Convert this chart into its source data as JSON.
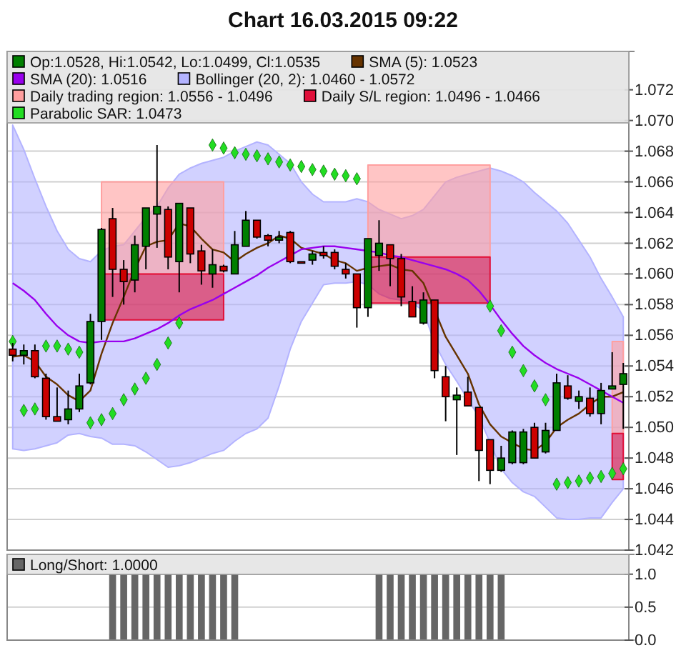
{
  "chart_data": [
    {
      "type": "candlestick",
      "title": "Chart 16.03.2015 09:22",
      "legend": "top left",
      "grid": "y",
      "tick_labels": "y",
      "categories": [
        null,
        null,
        null,
        null,
        null,
        null,
        null,
        null,
        null,
        null,
        null,
        null,
        null,
        null,
        null,
        null,
        null,
        null,
        null,
        null,
        null,
        null,
        null,
        null,
        null,
        null,
        null,
        null,
        null,
        null,
        null,
        null,
        null,
        null,
        null,
        null,
        null,
        null,
        null,
        null,
        null,
        null,
        null,
        null,
        null,
        null,
        null,
        null,
        null,
        null,
        null,
        null,
        null,
        null,
        null,
        null
      ],
      "ylim": [
        1.042,
        1.0745
      ],
      "yticks": [
        {
          "value": 1.042,
          "label": "1.042"
        },
        {
          "value": 1.044,
          "label": "1.044"
        },
        {
          "value": 1.046,
          "label": "1.046"
        },
        {
          "value": 1.048,
          "label": "1.048"
        },
        {
          "value": 1.05,
          "label": "1.050"
        },
        {
          "value": 1.052,
          "label": "1.052"
        },
        {
          "value": 1.054,
          "label": "1.054"
        },
        {
          "value": 1.056,
          "label": "1.056"
        },
        {
          "value": 1.058,
          "label": "1.058"
        },
        {
          "value": 1.06,
          "label": "1.060"
        },
        {
          "value": 1.062,
          "label": "1.062"
        },
        {
          "value": 1.064,
          "label": "1.064"
        },
        {
          "value": 1.066,
          "label": "1.066"
        },
        {
          "value": 1.068,
          "label": "1.068"
        },
        {
          "value": 1.07,
          "label": "1.070"
        },
        {
          "value": 1.072,
          "label": "1.072"
        }
      ],
      "series": [
        {
          "type": "candlestick",
          "name": "Op:1.0528, Hi:1.0542, Lo:1.0499, Cl:1.0535",
          "color": "#007f00",
          "colors": [
            "#cc0000",
            "#007f00",
            "#cc0000",
            "#cc0000",
            "#cc0000",
            "#007f00",
            "#007f00",
            "#007f00",
            "#007f00",
            "#cc0000",
            "#cc0000",
            "#007f00",
            "#007f00",
            "#007f00",
            "#cc0000",
            "#007f00",
            "#cc0000",
            "#cc0000",
            "#007f00",
            "#cc0000",
            "#007f00",
            "#007f00",
            "#cc0000",
            "#cc0000",
            "#007f00",
            "#cc0000",
            "#cc0000",
            "#007f00",
            "#cc0000",
            "#cc0000",
            "#cc0000",
            "#cc0000",
            "#007f00",
            "#007f00",
            "#cc0000",
            "#cc0000",
            "#cc0000",
            "#007f00",
            "#cc0000",
            "#cc0000",
            "#007f00",
            "#cc0000",
            "#cc0000",
            "#cc0000",
            "#007f00",
            "#007f00",
            "#007f00",
            "#cc0000",
            "#007f00",
            "#007f00",
            "#cc0000",
            "#007f00",
            "#cc0000",
            "#007f00",
            "#007f00",
            "#007f00"
          ],
          "ohlc": [
            [
              1.0551,
              1.0555,
              1.0543,
              1.0547
            ],
            [
              1.0547,
              1.0554,
              1.0541,
              1.055
            ],
            [
              1.055,
              1.0554,
              1.0532,
              1.0533
            ],
            [
              1.0532,
              1.0535,
              1.0505,
              1.0507
            ],
            [
              1.0507,
              1.0526,
              1.0504,
              1.0504
            ],
            [
              1.0505,
              1.0524,
              1.0502,
              1.0512
            ],
            [
              1.0512,
              1.0535,
              1.051,
              1.0527
            ],
            [
              1.0529,
              1.0574,
              1.0528,
              1.0569
            ],
            [
              1.0569,
              1.063,
              1.0557,
              1.0629
            ],
            [
              1.0636,
              1.0643,
              1.0585,
              1.0603
            ],
            [
              1.0603,
              1.0609,
              1.058,
              1.0595
            ],
            [
              1.0596,
              1.0625,
              1.0588,
              1.0619
            ],
            [
              1.0618,
              1.0643,
              1.0603,
              1.0643
            ],
            [
              1.0639,
              1.0684,
              1.0617,
              1.0644
            ],
            [
              1.0642,
              1.0644,
              1.0603,
              1.0611
            ],
            [
              1.0608,
              1.0646,
              1.0588,
              1.0646
            ],
            [
              1.0643,
              1.0643,
              1.0607,
              1.0613
            ],
            [
              1.0615,
              1.0619,
              1.0593,
              1.0602
            ],
            [
              1.06,
              1.0616,
              1.0591,
              1.0606
            ],
            [
              1.0605,
              1.0606,
              1.0601,
              1.0602
            ],
            [
              1.06,
              1.0628,
              1.06,
              1.0619
            ],
            [
              1.0618,
              1.0641,
              1.0618,
              1.0635
            ],
            [
              1.0635,
              1.0635,
              1.0623,
              1.0624
            ],
            [
              1.0625,
              1.0626,
              1.0618,
              1.0622
            ],
            [
              1.0622,
              1.0628,
              1.062,
              1.0624
            ],
            [
              1.0627,
              1.0628,
              1.0607,
              1.0608
            ],
            [
              1.0608,
              1.0608,
              1.0607,
              1.0607
            ],
            [
              1.0609,
              1.0615,
              1.0606,
              1.0613
            ],
            [
              1.0614,
              1.0618,
              1.061,
              1.0612
            ],
            [
              1.0614,
              1.0616,
              1.0603,
              1.0605
            ],
            [
              1.0603,
              1.0607,
              1.0597,
              1.06
            ],
            [
              1.06,
              1.06,
              1.0565,
              1.0578
            ],
            [
              1.0578,
              1.0623,
              1.0572,
              1.0623
            ],
            [
              1.0612,
              1.0635,
              1.0602,
              1.062
            ],
            [
              1.0619,
              1.0619,
              1.0592,
              1.061
            ],
            [
              1.061,
              1.0613,
              1.0579,
              1.0585
            ],
            [
              1.0582,
              1.0592,
              1.0572,
              1.0572
            ],
            [
              1.0568,
              1.0588,
              1.0567,
              1.0583
            ],
            [
              1.0583,
              1.0583,
              1.0532,
              1.0537
            ],
            [
              1.0533,
              1.054,
              1.0504,
              1.052
            ],
            [
              1.0518,
              1.0526,
              1.0482,
              1.0521
            ],
            [
              1.0523,
              1.0533,
              1.0514,
              1.0514
            ],
            [
              1.0513,
              1.0513,
              1.0465,
              1.0485
            ],
            [
              1.0492,
              1.0492,
              1.0463,
              1.0472
            ],
            [
              1.0472,
              1.0488,
              1.0471,
              1.048
            ],
            [
              1.0477,
              1.0498,
              1.0476,
              1.0497
            ],
            [
              1.0477,
              1.0499,
              1.0476,
              1.0497
            ],
            [
              1.05,
              1.0503,
              1.048,
              1.048
            ],
            [
              1.0484,
              1.0503,
              1.0483,
              1.0498
            ],
            [
              1.0498,
              1.0535,
              1.0498,
              1.0529
            ],
            [
              1.0527,
              1.0534,
              1.0518,
              1.0519
            ],
            [
              1.0517,
              1.0524,
              1.0512,
              1.052
            ],
            [
              1.0519,
              1.0526,
              1.0507,
              1.0509
            ],
            [
              1.0509,
              1.0529,
              1.0502,
              1.0524
            ],
            [
              1.0525,
              1.0549,
              1.0525,
              1.0527
            ],
            [
              1.0528,
              1.0542,
              1.0499,
              1.0535
            ]
          ]
        },
        {
          "type": "line",
          "name": "SMA (5): 1.0523",
          "color": "#663300",
          "values": [
            1.0546,
            1.0547,
            1.0543,
            1.0533,
            1.0528,
            1.0521,
            1.0517,
            1.0524,
            1.0548,
            1.0568,
            1.0585,
            1.0603,
            1.0618,
            1.0621,
            1.0622,
            1.0633,
            1.0631,
            1.0623,
            1.0616,
            1.0614,
            1.0608,
            1.0613,
            1.0617,
            1.062,
            1.0625,
            1.0623,
            1.0617,
            1.0615,
            1.0613,
            1.0609,
            1.0607,
            1.0602,
            1.0604,
            1.0605,
            1.0606,
            1.0603,
            1.0602,
            1.0594,
            null,
            1.0559,
            1.0547,
            1.0535,
            1.0515,
            1.0502,
            1.0494,
            1.049,
            1.0486,
            1.0485,
            1.049,
            1.05,
            1.0505,
            1.0509,
            1.0515,
            1.052,
            1.052,
            1.0523
          ]
        },
        {
          "type": "line",
          "name": "SMA (20): 1.0516",
          "color": "#9900ee",
          "values": [
            1.0594,
            1.0589,
            1.0583,
            1.0574,
            1.0566,
            1.056,
            1.0556,
            1.0555,
            1.0556,
            1.0556,
            1.0556,
            1.0558,
            1.0561,
            1.0564,
            1.0568,
            1.0573,
            1.0577,
            1.058,
            1.0583,
            1.0587,
            1.0591,
            1.0595,
            1.0599,
            1.0604,
            1.0608,
            1.0612,
            1.0616,
            1.0617,
            1.0618,
            1.0618,
            1.0617,
            1.0616,
            1.0615,
            1.0614,
            1.0612,
            1.0611,
            1.0609,
            1.0607,
            1.0605,
            1.0603,
            1.06,
            1.0596,
            1.0589,
            1.058,
            1.057,
            1.0561,
            1.0553,
            1.0547,
            1.0542,
            1.0538,
            1.0535,
            1.0532,
            1.0528,
            1.0524,
            1.052,
            1.0516
          ]
        },
        {
          "type": "line",
          "name": "Bollinger (20, 2): 1.0460 - 1.0572",
          "color": "#b3b3ff",
          "values": [
            null,
            null,
            null,
            null,
            null,
            null,
            null,
            null,
            null,
            null,
            null,
            null,
            null,
            null,
            null,
            null,
            null,
            null,
            null,
            null,
            null,
            null,
            null,
            null,
            null,
            null,
            null,
            null,
            null,
            null,
            null,
            null,
            null,
            null,
            null,
            null,
            null,
            null,
            null,
            null,
            null,
            null,
            null,
            null,
            null,
            null,
            null,
            null,
            null,
            null,
            null,
            null,
            null,
            null,
            null,
            null
          ],
          "upper": [
            1.0697,
            1.0681,
            1.0662,
            1.0644,
            1.0628,
            1.0616,
            1.061,
            1.0608,
            1.0615,
            1.0618,
            1.0619,
            1.0628,
            1.0637,
            1.0644,
            1.0656,
            1.0665,
            1.0669,
            1.0672,
            1.0674,
            1.0676,
            1.068,
            1.0683,
            1.0686,
            1.0684,
            1.0678,
            1.0672,
            1.066,
            1.0652,
            1.0647,
            1.0647,
            1.0647,
            1.0649,
            1.0647,
            1.0642,
            1.0639,
            1.0636,
            1.0638,
            1.0642,
            1.0651,
            1.066,
            1.0663,
            1.0665,
            1.0667,
            1.0669,
            1.0667,
            1.0664,
            1.066,
            1.0653,
            1.0647,
            1.0641,
            1.0633,
            1.0622,
            1.0611,
            1.0597,
            1.0585,
            1.0572
          ],
          "lower": [
            1.0486,
            1.0485,
            1.0486,
            1.0488,
            1.049,
            1.0495,
            1.0496,
            1.0494,
            1.0493,
            1.0489,
            1.0489,
            1.0488,
            1.0484,
            1.0479,
            1.0474,
            1.0475,
            1.0477,
            1.048,
            1.0483,
            1.0485,
            1.0491,
            1.0496,
            1.0499,
            1.0506,
            1.0527,
            1.0551,
            1.0569,
            1.0581,
            1.0593,
            1.0594,
            1.0594,
            1.0595,
            1.0593,
            1.0587,
            1.0584,
            1.0583,
            1.0581,
            1.0576,
            1.0555,
            1.0541,
            1.053,
            1.0518,
            1.0507,
            1.049,
            1.0473,
            1.0464,
            1.0458,
            1.0455,
            1.0448,
            1.0441,
            1.044,
            1.044,
            1.0441,
            1.0441,
            1.0451,
            1.046
          ]
        },
        {
          "type": "line",
          "name": "Daily trading region: 1.0556 - 1.0496",
          "color": "#ff9f9f",
          "values": [
            null,
            null,
            null,
            null,
            null,
            null,
            null,
            null,
            null,
            null,
            null,
            null,
            null,
            null,
            null,
            null,
            null,
            null,
            null,
            null,
            null,
            null,
            null,
            null,
            null,
            null,
            null,
            null,
            null,
            null,
            null,
            null,
            null,
            null,
            null,
            null,
            null,
            null,
            null,
            null,
            null,
            null,
            null,
            null,
            null,
            null,
            null,
            null,
            null,
            null,
            null,
            null,
            null,
            null,
            null,
            null
          ],
          "upper": [
            null,
            null,
            null,
            null,
            null,
            null,
            null,
            null,
            1.066,
            1.066,
            1.066,
            1.066,
            1.066,
            1.066,
            1.066,
            1.066,
            1.066,
            1.066,
            1.066,
            1.066,
            null,
            null,
            null,
            null,
            null,
            null,
            null,
            null,
            null,
            null,
            null,
            null,
            1.0671,
            1.0671,
            1.0671,
            1.0671,
            1.0671,
            1.0671,
            1.0671,
            1.0671,
            1.0671,
            1.0671,
            1.0671,
            1.0671,
            null,
            null,
            null,
            null,
            null,
            null,
            null,
            null,
            null,
            null,
            1.0556,
            1.0556
          ],
          "lower": [
            null,
            null,
            null,
            null,
            null,
            null,
            null,
            null,
            1.06,
            1.06,
            1.06,
            1.06,
            1.06,
            1.06,
            1.06,
            1.06,
            1.06,
            1.06,
            1.06,
            1.06,
            null,
            null,
            null,
            null,
            null,
            null,
            null,
            null,
            null,
            null,
            null,
            null,
            1.0611,
            1.0611,
            1.0611,
            1.0611,
            1.0611,
            1.0611,
            1.0611,
            1.0611,
            1.0611,
            1.0611,
            1.0611,
            1.0611,
            null,
            null,
            null,
            null,
            null,
            null,
            null,
            null,
            null,
            null,
            1.0496,
            1.0496
          ]
        },
        {
          "type": "line",
          "name": "Daily S/L region: 1.0496 - 1.0466",
          "color": "#e0103a",
          "values": [
            null,
            null,
            null,
            null,
            null,
            null,
            null,
            null,
            null,
            null,
            null,
            null,
            null,
            null,
            null,
            null,
            null,
            null,
            null,
            null,
            null,
            null,
            null,
            null,
            null,
            null,
            null,
            null,
            null,
            null,
            null,
            null,
            null,
            null,
            null,
            null,
            null,
            null,
            null,
            null,
            null,
            null,
            null,
            null,
            null,
            null,
            null,
            null,
            null,
            null,
            null,
            null,
            null,
            null,
            null,
            null
          ],
          "upper": [
            null,
            null,
            null,
            null,
            null,
            null,
            null,
            null,
            1.06,
            1.06,
            1.06,
            1.06,
            1.06,
            1.06,
            1.06,
            1.06,
            1.06,
            1.06,
            1.06,
            1.06,
            null,
            null,
            null,
            null,
            null,
            null,
            null,
            null,
            null,
            null,
            null,
            null,
            1.0611,
            1.0611,
            1.0611,
            1.0611,
            1.0611,
            1.0611,
            1.0611,
            1.0611,
            1.0611,
            1.0611,
            1.0611,
            1.0611,
            null,
            null,
            null,
            null,
            null,
            null,
            null,
            null,
            null,
            null,
            1.0496,
            1.0496
          ],
          "lower": [
            null,
            null,
            null,
            null,
            null,
            null,
            null,
            null,
            1.057,
            1.057,
            1.057,
            1.057,
            1.057,
            1.057,
            1.057,
            1.057,
            1.057,
            1.057,
            1.057,
            1.057,
            null,
            null,
            null,
            null,
            null,
            null,
            null,
            null,
            null,
            null,
            null,
            null,
            1.0581,
            1.0581,
            1.0581,
            1.0581,
            1.0581,
            1.0581,
            1.0581,
            1.0581,
            1.0581,
            1.0581,
            1.0581,
            1.0581,
            null,
            null,
            null,
            null,
            null,
            null,
            null,
            null,
            null,
            null,
            1.0466,
            1.0466
          ]
        },
        {
          "type": "scatter",
          "name": "Parabolic SAR: 1.0473",
          "color": "#22dd22",
          "marker": "diamond",
          "values": [
            1.0556,
            1.0511,
            1.0512,
            1.0553,
            1.0553,
            1.0551,
            1.0549,
            1.0503,
            1.0505,
            1.0509,
            1.0518,
            1.0525,
            1.0532,
            1.0541,
            1.0555,
            1.0568,
            null,
            null,
            1.0684,
            1.0682,
            1.0679,
            1.0678,
            1.0677,
            1.0675,
            1.0673,
            1.0671,
            1.067,
            1.0668,
            1.0667,
            1.0665,
            1.0664,
            1.0662,
            null,
            null,
            null,
            null,
            null,
            null,
            null,
            null,
            null,
            null,
            null,
            1.0579,
            1.0563,
            1.0549,
            1.0537,
            1.0527,
            1.0518,
            1.0463,
            1.0464,
            1.0465,
            1.0467,
            1.0468,
            1.047,
            1.0473
          ]
        }
      ]
    },
    {
      "type": "bar",
      "legend": "top left",
      "grid": "y",
      "tick_labels": "y",
      "categories": [
        null,
        null,
        null,
        null,
        null,
        null,
        null,
        null,
        null,
        null,
        null,
        null,
        null,
        null,
        null,
        null,
        null,
        null,
        null,
        null,
        null,
        null,
        null,
        null,
        null,
        null,
        null,
        null,
        null,
        null,
        null,
        null,
        null,
        null,
        null,
        null,
        null,
        null,
        null,
        null,
        null,
        null,
        null,
        null,
        null,
        null,
        null,
        null,
        null,
        null,
        null,
        null,
        null,
        null,
        null,
        null
      ],
      "ylim": [
        0,
        1.3
      ],
      "yticks": [
        {
          "value": 0,
          "label": "0.0"
        },
        {
          "value": 0.5,
          "label": "0.5"
        },
        {
          "value": 1,
          "label": "1.0"
        }
      ],
      "series": [
        {
          "name": "Long/Short: 1.0000",
          "color": "#666666",
          "values": [
            0,
            0,
            0,
            0,
            0,
            0,
            0,
            0,
            0,
            1,
            1,
            1,
            1,
            1,
            1,
            1,
            1,
            1,
            1,
            1,
            1,
            0,
            0,
            0,
            0,
            0,
            0,
            0,
            0,
            0,
            0,
            0,
            0,
            1,
            1,
            1,
            1,
            1,
            1,
            1,
            1,
            1,
            1,
            1,
            1,
            0,
            0,
            0,
            0,
            0,
            0,
            0,
            0,
            0,
            0,
            0
          ]
        }
      ]
    }
  ]
}
